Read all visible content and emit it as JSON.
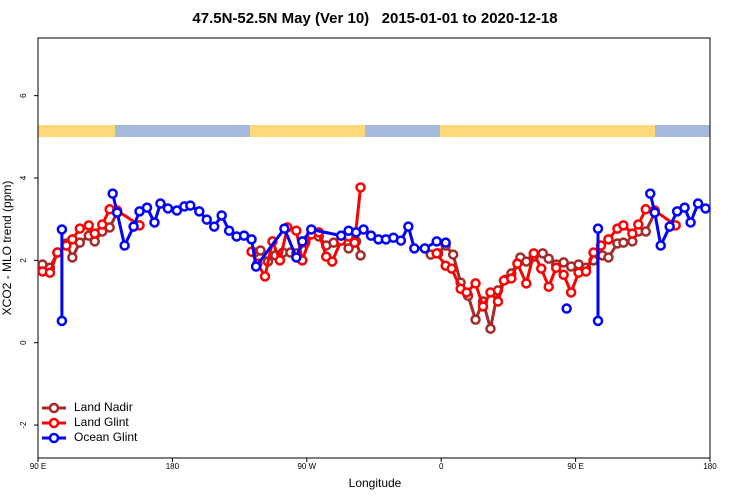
{
  "chart_data": {
    "type": "line",
    "title": "47.5N-52.5N May (Ver 10)   2015-01-01 to 2020-12-18",
    "x_label": "Longitude",
    "y_label": "XCO2 - MLO trend (ppm)",
    "xlim": [
      90,
      540
    ],
    "ylim": [
      -2.8,
      7.4
    ],
    "xticks": [
      {
        "value": 90,
        "label": "90 E"
      },
      180,
      {
        "value": 270,
        "label": "90 W"
      },
      {
        "value": 360,
        "label": "0"
      },
      {
        "value": 450,
        "label": "90 E"
      },
      {
        "value": 540,
        "label": "180"
      }
    ],
    "yticks": [
      -2,
      0,
      2,
      4,
      6
    ],
    "legend": "bottom-left",
    "series": [
      {
        "name": "Land Nadir",
        "color": "#a52a2a",
        "x": [
          93,
          98,
          103,
          109,
          113,
          118,
          124,
          128,
          133,
          138,
          143,
          null,
          235,
          239,
          244,
          249,
          254,
          259,
          263,
          269,
          274,
          278,
          283,
          288,
          293,
          298,
          303,
          306,
          null,
          353,
          358,
          363,
          368,
          373,
          378,
          383,
          388,
          393,
          398,
          403,
          407,
          413,
          417,
          422,
          428,
          432,
          437,
          442,
          447,
          452,
          457,
          462,
          468,
          472,
          478,
          482,
          488,
          492,
          497,
          503
        ],
        "values": [
          1.9,
          1.82,
          2.19,
          2.41,
          2.07,
          2.43,
          2.6,
          2.46,
          2.7,
          2.8,
          3.16,
          null,
          2.19,
          2.24,
          1.97,
          2.12,
          2.19,
          2.19,
          2.17,
          2.43,
          2.65,
          2.58,
          2.36,
          2.43,
          2.48,
          2.29,
          2.46,
          2.12,
          null,
          2.14,
          2.17,
          2.36,
          2.14,
          1.46,
          1.14,
          0.56,
          1.0,
          0.34,
          1.27,
          1.53,
          1.68,
          2.07,
          1.97,
          2.09,
          2.17,
          2.04,
          1.9,
          1.95,
          1.85,
          1.9,
          1.82,
          2.0,
          2.12,
          2.07,
          2.41,
          2.43,
          2.46,
          2.7,
          2.7,
          3.16
        ]
      },
      {
        "name": "Land Glint",
        "color": "#ff0000",
        "x": [
          93,
          98,
          103,
          109,
          113,
          118,
          124,
          128,
          133,
          138,
          143,
          158,
          null,
          233,
          237,
          242,
          247,
          252,
          257,
          263,
          267,
          273,
          278,
          283,
          287,
          293,
          298,
          302,
          306,
          null,
          357,
          363,
          367,
          373,
          377,
          383,
          388,
          393,
          398,
          402,
          407,
          411,
          417,
          422,
          427,
          432,
          437,
          442,
          447,
          452,
          457,
          462,
          467,
          472,
          478,
          482,
          488,
          492,
          497,
          503,
          517
        ],
        "values": [
          1.73,
          1.7,
          2.19,
          2.36,
          2.51,
          2.77,
          2.85,
          2.65,
          2.87,
          3.24,
          3.21,
          2.85,
          null,
          2.21,
          1.92,
          1.61,
          2.46,
          2.0,
          2.8,
          2.72,
          2.0,
          2.63,
          2.68,
          2.09,
          1.97,
          2.48,
          2.58,
          2.43,
          3.77,
          null,
          2.17,
          1.87,
          1.8,
          1.31,
          1.22,
          1.44,
          0.88,
          1.22,
          1.0,
          1.51,
          1.56,
          1.92,
          1.44,
          2.17,
          1.8,
          1.36,
          1.82,
          1.65,
          1.22,
          1.7,
          1.73,
          2.19,
          2.36,
          2.51,
          2.77,
          2.85,
          2.65,
          2.87,
          3.24,
          3.21,
          2.85
        ]
      },
      {
        "name": "Ocean Glint",
        "color": "#0000ff",
        "x": [
          106,
          106,
          null,
          140,
          143,
          148,
          154,
          158,
          163,
          168,
          172,
          177,
          183,
          188,
          192,
          198,
          203,
          208,
          213,
          218,
          223,
          228,
          233,
          236,
          255,
          263,
          267,
          273,
          293,
          298,
          303,
          308,
          313,
          318,
          323,
          328,
          333,
          338,
          342,
          349,
          357,
          363,
          null,
          444,
          null,
          465,
          465,
          null,
          500,
          503,
          507,
          513,
          518,
          523,
          527,
          532,
          537
        ],
        "values": [
          2.75,
          0.53,
          null,
          3.62,
          3.16,
          2.36,
          2.82,
          3.19,
          3.28,
          2.92,
          3.38,
          3.26,
          3.21,
          3.31,
          3.33,
          3.19,
          2.99,
          2.82,
          3.09,
          2.72,
          2.58,
          2.6,
          2.51,
          1.85,
          2.77,
          2.07,
          2.46,
          2.75,
          2.6,
          2.72,
          2.68,
          2.75,
          2.6,
          2.51,
          2.51,
          2.55,
          2.48,
          2.82,
          2.29,
          2.29,
          2.46,
          2.43,
          null,
          0.83,
          null,
          2.77,
          0.53,
          null,
          3.62,
          3.16,
          2.36,
          2.82,
          3.19,
          3.28,
          2.92,
          3.38,
          3.26
        ]
      }
    ]
  }
}
